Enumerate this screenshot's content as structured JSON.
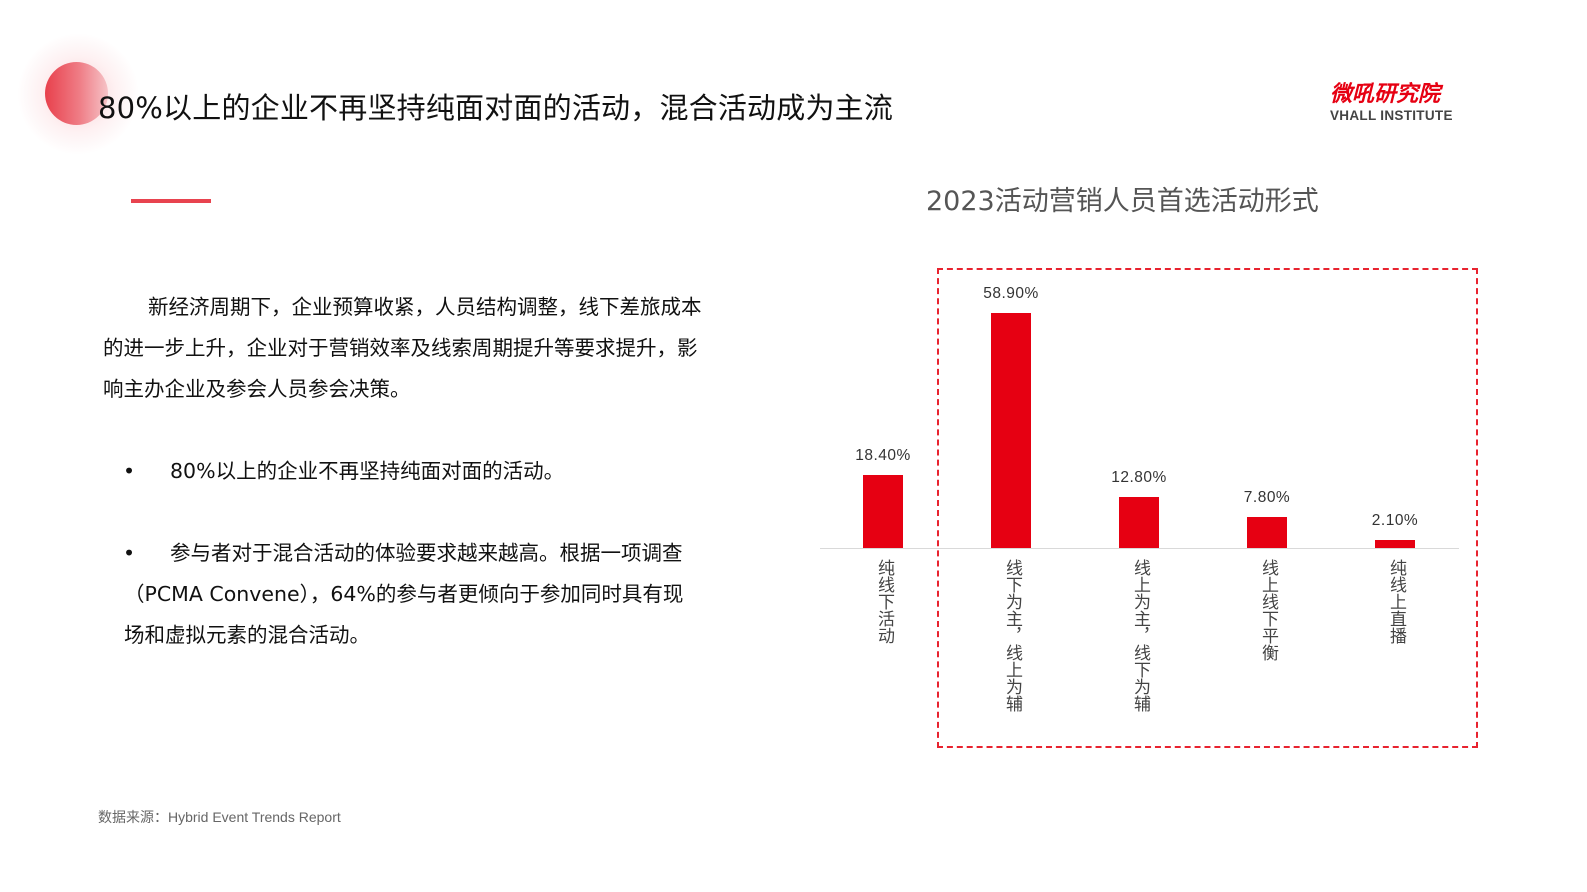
{
  "slide": {
    "title": "80%以上的企业不再坚持纯面对面的活动，混合活动成为主流",
    "logo": {
      "cn": "微吼研究院",
      "en": "VHALL INSTITUTE"
    },
    "paragraph": "新经济周期下，企业预算收紧，人员结构调整，线下差旅成本的进一步上升，企业对于营销效率及线索周期提升等要求提升，影响主办企业及参会人员参会决策。",
    "bullets": [
      {
        "marker": "•",
        "text": "80%以上的企业不再坚持纯面对面的活动。"
      },
      {
        "marker": "•",
        "text": "参与者对于混合活动的体验要求越来越高。根据一项调查（PCMA Convene），64%的参与者更倾向于参加同时具有现场和虚拟元素的混合活动。"
      }
    ],
    "source": "数据来源：Hybrid Event Trends Report"
  },
  "colors": {
    "accent": "#e60012",
    "dashed_highlight": "#e8232f",
    "title_dot": "#e8404c"
  },
  "chart_data": {
    "type": "bar",
    "title": "2023活动营销人员首选活动形式",
    "categories": [
      "纯线下活动",
      "线下为主，线上为辅",
      "线上为主，线下为辅",
      "线上线下平衡",
      "纯线上直播"
    ],
    "values": [
      18.4,
      58.9,
      12.8,
      7.8,
      2.1
    ],
    "value_labels": [
      "18.40%",
      "58.90%",
      "12.80%",
      "7.80%",
      "2.10%"
    ],
    "unit": "%",
    "xlabel": "",
    "ylabel": "",
    "ylim": [
      0,
      60
    ],
    "grid": false,
    "legend": null,
    "annotations": [
      "Dashed red box highlighting the four categories that include online elements (线下为主，线上为辅 through 纯线上直播)"
    ]
  }
}
